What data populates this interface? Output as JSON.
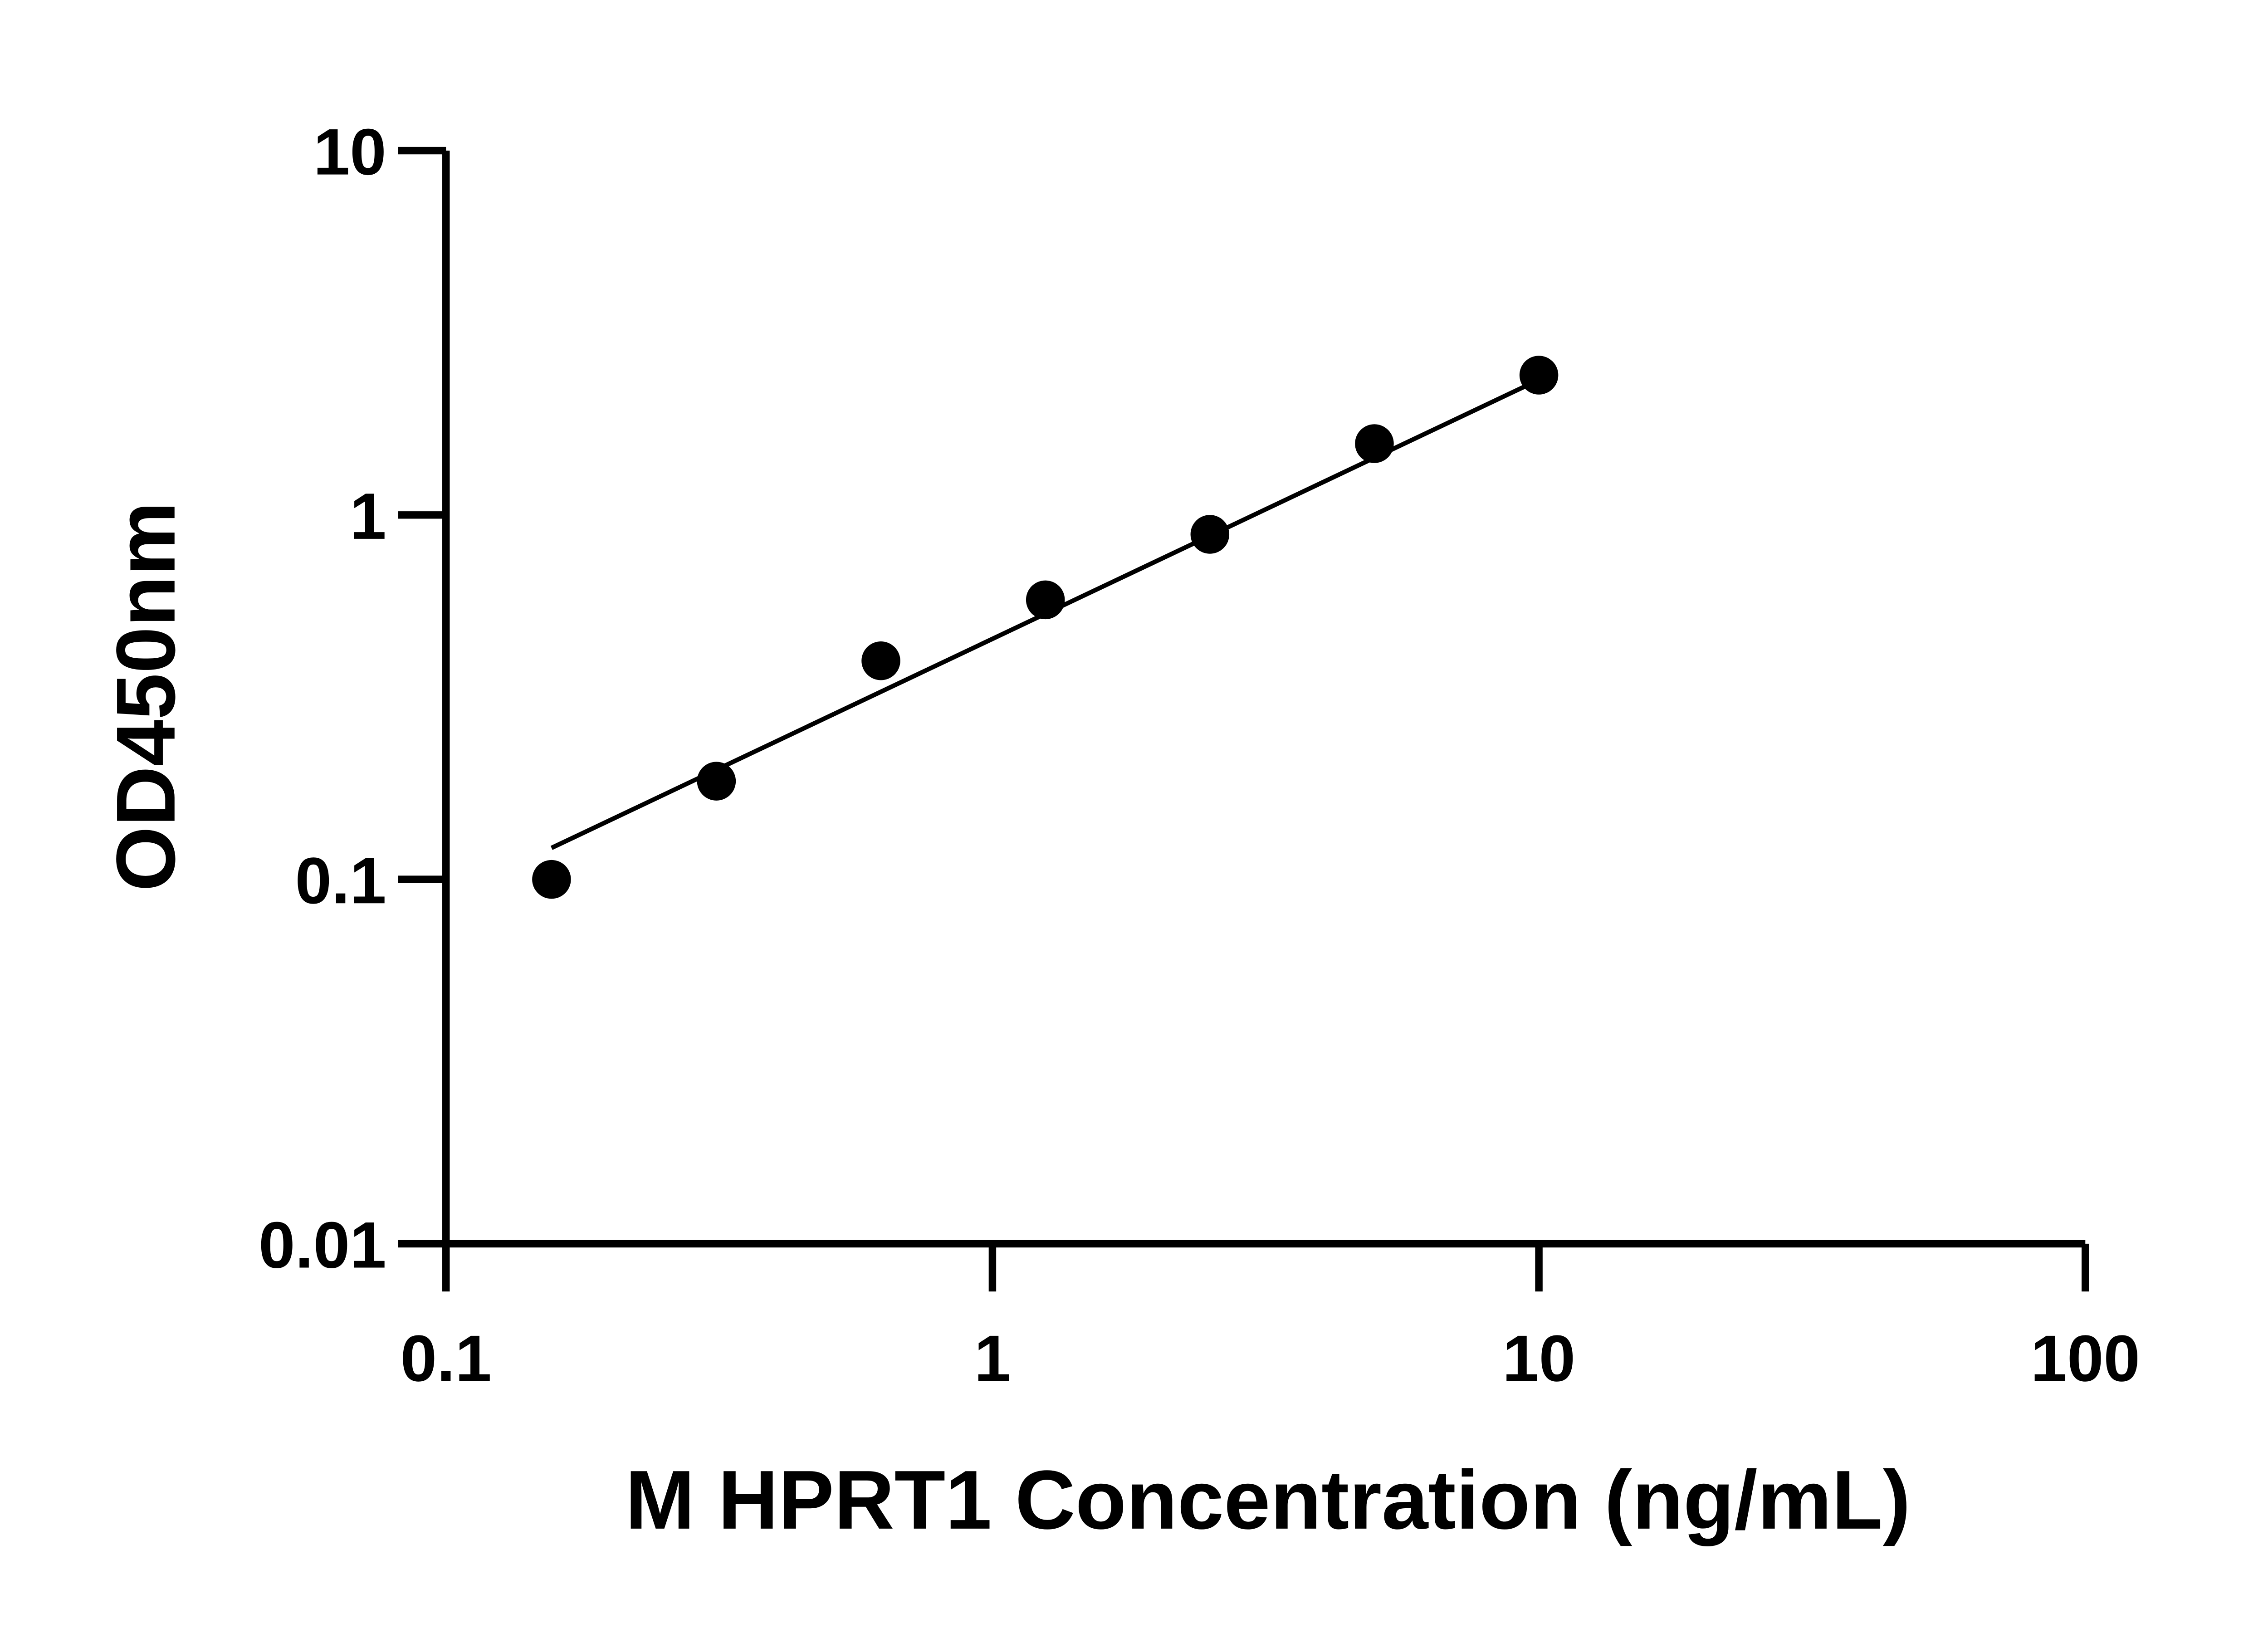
{
  "chart_data": {
    "type": "scatter",
    "title": "",
    "xlabel": "M HPRT1 Concentration (ng/mL)",
    "ylabel": "OD450nm",
    "xscale": "log",
    "yscale": "log",
    "xlim": [
      0.1,
      100
    ],
    "ylim": [
      0.01,
      10
    ],
    "xticks": [
      0.1,
      1,
      10,
      100
    ],
    "xtick_labels": [
      "0.1",
      "1",
      "10",
      "100"
    ],
    "yticks": [
      0.01,
      0.1,
      1,
      10
    ],
    "ytick_labels": [
      "0.01",
      "0.1",
      "1",
      "10"
    ],
    "grid": false,
    "points": {
      "x": [
        0.156,
        0.3125,
        0.625,
        1.25,
        2.5,
        5,
        10
      ],
      "y": [
        0.1,
        0.186,
        0.398,
        0.585,
        0.885,
        1.57,
        2.42
      ]
    },
    "fit_line": {
      "x": [
        0.156,
        10
      ],
      "y": [
        0.122,
        2.35
      ]
    },
    "colors": {
      "points": "#000000",
      "line": "#000000",
      "axes": "#000000"
    }
  }
}
